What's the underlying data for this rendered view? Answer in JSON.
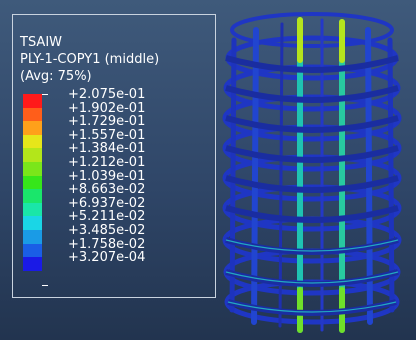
{
  "legend": {
    "variable": "TSAIW",
    "ply": "PLY-1-COPY1 (middle)",
    "averaging": "(Avg: 75%)",
    "colors": [
      "#ff1a1a",
      "#ff5e1a",
      "#ffa01a",
      "#e6e61a",
      "#b3e61a",
      "#7ae61a",
      "#36e61a",
      "#1ae66b",
      "#1ae6a8",
      "#1ad6e6",
      "#1a9be6",
      "#1a5ee6",
      "#1a1ae6"
    ],
    "values": [
      "+2.075e-01",
      "+1.902e-01",
      "+1.729e-01",
      "+1.557e-01",
      "+1.384e-01",
      "+1.212e-01",
      "+1.039e-01",
      "+8.663e-02",
      "+6.937e-02",
      "+5.211e-02",
      "+3.485e-02",
      "+1.758e-02",
      "+3.207e-04"
    ]
  }
}
